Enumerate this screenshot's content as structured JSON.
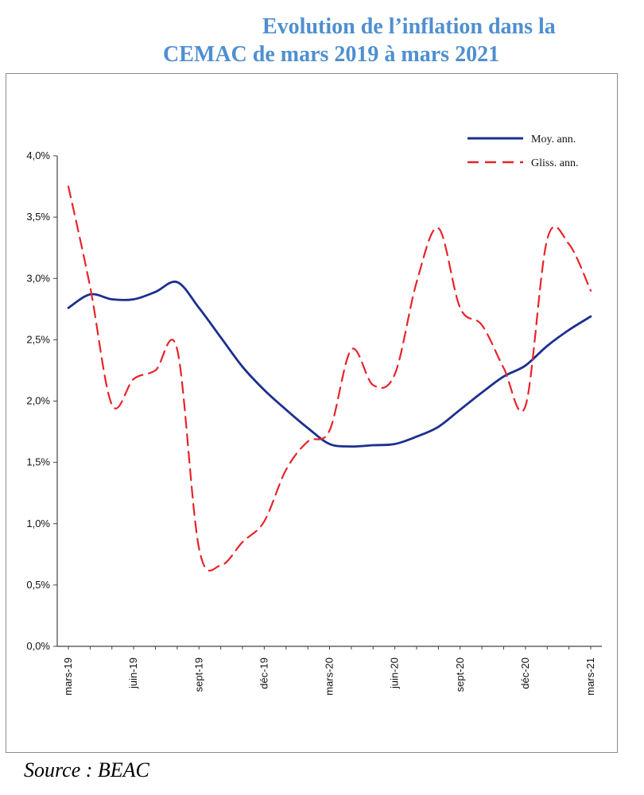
{
  "title": {
    "line1": "Evolution de l’inflation dans la",
    "line2": "CEMAC de mars 2019 à mars 2021"
  },
  "source": "Source : BEAC",
  "chart_data": {
    "type": "line",
    "ylim": [
      0,
      4
    ],
    "yticks": [
      0,
      0.5,
      1,
      1.5,
      2,
      2.5,
      3,
      3.5,
      4
    ],
    "ytick_labels": [
      "0,0%",
      "0,5%",
      "1,0%",
      "1,5%",
      "2,0%",
      "2,5%",
      "3,0%",
      "3,5%",
      "4,0%"
    ],
    "x": [
      "mars-19",
      "avr-19",
      "mai-19",
      "juin-19",
      "juil-19",
      "août-19",
      "sept-19",
      "oct-19",
      "nov-19",
      "déc-19",
      "janv-20",
      "févr-20",
      "mars-20",
      "avr-20",
      "mai-20",
      "juin-20",
      "juil-20",
      "août-20",
      "sept-20",
      "oct-20",
      "nov-20",
      "déc-20",
      "janv-21",
      "févr-21",
      "mars-21"
    ],
    "xtick_labels": [
      {
        "index": 0,
        "label": "mars-19"
      },
      {
        "index": 3,
        "label": "juin-19"
      },
      {
        "index": 6,
        "label": "sept-19"
      },
      {
        "index": 9,
        "label": "déc-19"
      },
      {
        "index": 12,
        "label": "mars-20"
      },
      {
        "index": 15,
        "label": "juin-20"
      },
      {
        "index": 18,
        "label": "sept-20"
      },
      {
        "index": 21,
        "label": "déc-20"
      },
      {
        "index": 24,
        "label": "mars-21"
      }
    ],
    "legend_position": "top-right",
    "grid": false,
    "series": [
      {
        "name": "Moy. ann.",
        "color": "#1c2f8f",
        "style": "solid",
        "values": [
          2.76,
          2.87,
          2.83,
          2.83,
          2.89,
          2.97,
          2.76,
          2.52,
          2.28,
          2.09,
          1.93,
          1.78,
          1.65,
          1.63,
          1.64,
          1.65,
          1.71,
          1.79,
          1.93,
          2.07,
          2.2,
          2.29,
          2.45,
          2.58,
          2.69
        ]
      },
      {
        "name": "Gliss. ann.",
        "color": "#e8232b",
        "style": "dashed",
        "values": [
          3.75,
          2.93,
          1.97,
          2.18,
          2.25,
          2.42,
          0.8,
          0.66,
          0.85,
          1.02,
          1.44,
          1.67,
          1.76,
          2.42,
          2.13,
          2.22,
          2.97,
          3.41,
          2.76,
          2.62,
          2.27,
          1.96,
          3.32,
          3.28,
          2.9
        ]
      }
    ]
  }
}
